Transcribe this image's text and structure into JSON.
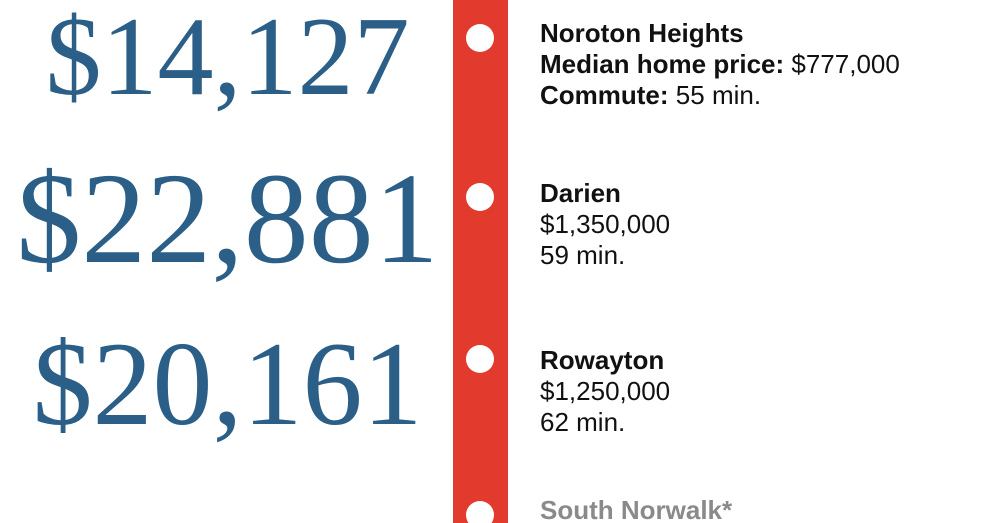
{
  "colors": {
    "line_red": "#E23B2E",
    "number_blue": "#2B5F88",
    "text_black": "#111111",
    "muted_gray": "#8A8A8A",
    "background": "#FFFFFF"
  },
  "stations": [
    {
      "big_number": "$14,127",
      "name": "Noroton Heights",
      "price_label": "Median home price:",
      "price_value": "$777,000",
      "commute_label": "Commute:",
      "commute_value": "55 min."
    },
    {
      "big_number": "$22,881",
      "name": "Darien",
      "price_value": "$1,350,000",
      "commute_value": "59 min."
    },
    {
      "big_number": "$20,161",
      "name": "Rowayton",
      "price_value": "$1,250,000",
      "commute_value": "62 min."
    },
    {
      "name": "South Norwalk*"
    }
  ],
  "chart_data": {
    "type": "table",
    "columns": [
      "left_big_number_usd",
      "station",
      "median_home_price_usd",
      "commute_min"
    ],
    "rows": [
      [
        14127,
        "Noroton Heights",
        777000,
        55
      ],
      [
        22881,
        "Darien",
        1350000,
        59
      ],
      [
        20161,
        "Rowayton",
        1250000,
        62
      ],
      [
        null,
        "South Norwalk*",
        null,
        null
      ]
    ],
    "layout_hints": {
      "big_number_font_scales_with_value": true,
      "rail_line": "vertical red band with white station dots",
      "fourth_station_clipped_at_bottom": true
    }
  }
}
